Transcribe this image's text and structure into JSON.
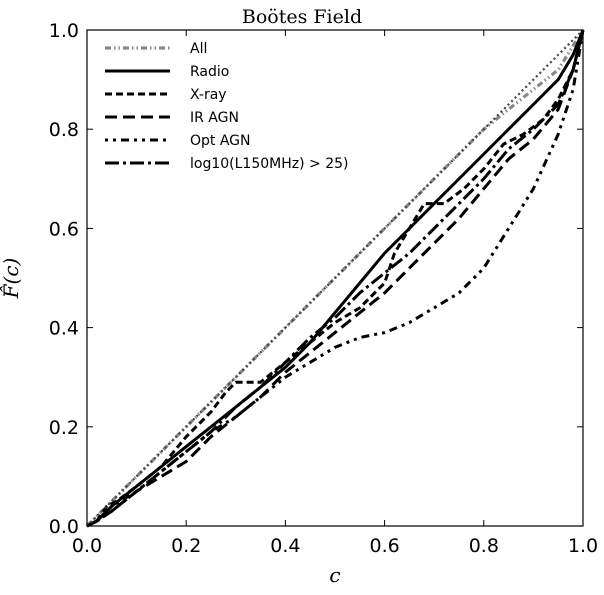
{
  "chart_data": {
    "type": "line",
    "title": "Boötes Field",
    "xlabel": "c",
    "ylabel": "F̂(c)",
    "xlim": [
      0.0,
      1.0
    ],
    "ylim": [
      0.0,
      1.0
    ],
    "grid": false,
    "legend_position": "top-left",
    "x_ticks": [
      "0.0",
      "0.2",
      "0.4",
      "0.6",
      "0.8",
      "1.0"
    ],
    "y_ticks": [
      "0.0",
      "0.2",
      "0.4",
      "0.6",
      "0.8",
      "1.0"
    ],
    "series": [
      {
        "name": "All",
        "color": "#888888",
        "dash": "dashdot",
        "points": [
          [
            0.0,
            0.0
          ],
          [
            0.1,
            0.1
          ],
          [
            0.2,
            0.2
          ],
          [
            0.3,
            0.3
          ],
          [
            0.4,
            0.4
          ],
          [
            0.5,
            0.5
          ],
          [
            0.6,
            0.6
          ],
          [
            0.7,
            0.7
          ],
          [
            0.8,
            0.8
          ],
          [
            0.9,
            0.88
          ],
          [
            0.95,
            0.92
          ],
          [
            1.0,
            1.0
          ]
        ]
      },
      {
        "name": "Radio",
        "color": "#000000",
        "dash": "solid",
        "points": [
          [
            0.0,
            0.0
          ],
          [
            0.02,
            0.01
          ],
          [
            0.05,
            0.04
          ],
          [
            0.1,
            0.08
          ],
          [
            0.15,
            0.12
          ],
          [
            0.2,
            0.16
          ],
          [
            0.25,
            0.2
          ],
          [
            0.3,
            0.24
          ],
          [
            0.35,
            0.28
          ],
          [
            0.4,
            0.32
          ],
          [
            0.45,
            0.37
          ],
          [
            0.5,
            0.43
          ],
          [
            0.55,
            0.49
          ],
          [
            0.6,
            0.55
          ],
          [
            0.65,
            0.6
          ],
          [
            0.7,
            0.65
          ],
          [
            0.75,
            0.7
          ],
          [
            0.8,
            0.75
          ],
          [
            0.85,
            0.8
          ],
          [
            0.9,
            0.85
          ],
          [
            0.95,
            0.9
          ],
          [
            0.98,
            0.95
          ],
          [
            1.0,
            1.0
          ]
        ]
      },
      {
        "name": "X-ray",
        "color": "#000000",
        "dash": "dotted-dash",
        "points": [
          [
            0.0,
            0.0
          ],
          [
            0.02,
            0.01
          ],
          [
            0.04,
            0.04
          ],
          [
            0.06,
            0.05
          ],
          [
            0.1,
            0.08
          ],
          [
            0.15,
            0.12
          ],
          [
            0.2,
            0.18
          ],
          [
            0.25,
            0.23
          ],
          [
            0.28,
            0.27
          ],
          [
            0.3,
            0.29
          ],
          [
            0.35,
            0.29
          ],
          [
            0.4,
            0.33
          ],
          [
            0.45,
            0.37
          ],
          [
            0.5,
            0.41
          ],
          [
            0.55,
            0.44
          ],
          [
            0.6,
            0.49
          ],
          [
            0.62,
            0.55
          ],
          [
            0.65,
            0.6
          ],
          [
            0.68,
            0.65
          ],
          [
            0.72,
            0.65
          ],
          [
            0.76,
            0.68
          ],
          [
            0.8,
            0.72
          ],
          [
            0.84,
            0.77
          ],
          [
            0.88,
            0.79
          ],
          [
            0.92,
            0.82
          ],
          [
            0.95,
            0.86
          ],
          [
            0.98,
            0.92
          ],
          [
            1.0,
            1.0
          ]
        ]
      },
      {
        "name": "IR AGN",
        "color": "#000000",
        "dash": "longdash",
        "points": [
          [
            0.0,
            0.0
          ],
          [
            0.02,
            0.01
          ],
          [
            0.05,
            0.03
          ],
          [
            0.1,
            0.07
          ],
          [
            0.15,
            0.1
          ],
          [
            0.2,
            0.13
          ],
          [
            0.25,
            0.18
          ],
          [
            0.3,
            0.22
          ],
          [
            0.35,
            0.26
          ],
          [
            0.4,
            0.31
          ],
          [
            0.45,
            0.35
          ],
          [
            0.5,
            0.39
          ],
          [
            0.55,
            0.43
          ],
          [
            0.6,
            0.47
          ],
          [
            0.65,
            0.52
          ],
          [
            0.7,
            0.57
          ],
          [
            0.75,
            0.62
          ],
          [
            0.8,
            0.68
          ],
          [
            0.85,
            0.74
          ],
          [
            0.9,
            0.78
          ],
          [
            0.95,
            0.84
          ],
          [
            0.98,
            0.92
          ],
          [
            1.0,
            1.0
          ]
        ]
      },
      {
        "name": "Opt AGN",
        "color": "#000000",
        "dash": "sparse-dotdash",
        "points": [
          [
            0.0,
            0.0
          ],
          [
            0.02,
            0.01
          ],
          [
            0.05,
            0.04
          ],
          [
            0.1,
            0.07
          ],
          [
            0.15,
            0.11
          ],
          [
            0.2,
            0.15
          ],
          [
            0.25,
            0.19
          ],
          [
            0.3,
            0.22
          ],
          [
            0.35,
            0.26
          ],
          [
            0.4,
            0.3
          ],
          [
            0.45,
            0.33
          ],
          [
            0.5,
            0.36
          ],
          [
            0.55,
            0.38
          ],
          [
            0.6,
            0.39
          ],
          [
            0.65,
            0.41
          ],
          [
            0.7,
            0.44
          ],
          [
            0.75,
            0.47
          ],
          [
            0.8,
            0.52
          ],
          [
            0.85,
            0.6
          ],
          [
            0.9,
            0.68
          ],
          [
            0.95,
            0.79
          ],
          [
            0.98,
            0.88
          ],
          [
            1.0,
            1.0
          ]
        ]
      },
      {
        "name": "log10(L150MHz) > 25)",
        "color": "#000000",
        "dash": "dashdot-long",
        "points": [
          [
            0.0,
            0.0
          ],
          [
            0.02,
            0.01
          ],
          [
            0.05,
            0.03
          ],
          [
            0.1,
            0.07
          ],
          [
            0.15,
            0.11
          ],
          [
            0.2,
            0.15
          ],
          [
            0.25,
            0.19
          ],
          [
            0.3,
            0.24
          ],
          [
            0.35,
            0.28
          ],
          [
            0.4,
            0.33
          ],
          [
            0.45,
            0.38
          ],
          [
            0.5,
            0.42
          ],
          [
            0.55,
            0.47
          ],
          [
            0.6,
            0.51
          ],
          [
            0.65,
            0.55
          ],
          [
            0.7,
            0.6
          ],
          [
            0.75,
            0.65
          ],
          [
            0.8,
            0.7
          ],
          [
            0.85,
            0.76
          ],
          [
            0.9,
            0.8
          ],
          [
            0.95,
            0.85
          ],
          [
            0.98,
            0.92
          ],
          [
            1.0,
            1.0
          ]
        ]
      },
      {
        "name": "",
        "color": "#444444",
        "dash": "dotted",
        "points": [
          [
            0.0,
            0.0
          ],
          [
            0.5,
            0.5
          ],
          [
            1.0,
            1.0
          ]
        ]
      }
    ]
  }
}
